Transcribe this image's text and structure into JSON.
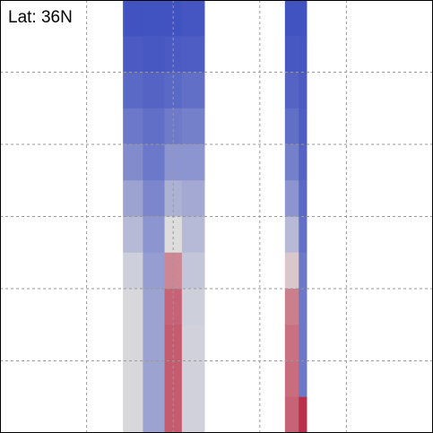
{
  "chart_data": {
    "type": "heatmap",
    "annotation": "Lat: 36N",
    "xlim": [
      0,
      5
    ],
    "xticks": [
      1,
      2,
      3,
      4
    ],
    "ylim": [
      0,
      6
    ],
    "yticks": [
      1,
      2,
      3,
      4,
      5
    ],
    "grid": true,
    "x_edges": [
      1.42,
      1.65,
      1.9,
      2.1,
      2.36,
      3.29,
      3.45,
      3.54
    ],
    "y_edges": [
      6,
      5.5,
      5,
      4.5,
      4,
      3.5,
      3,
      2.5,
      2,
      1.5,
      1,
      0.5,
      0
    ],
    "zlim": [
      0,
      1
    ],
    "colormap": [
      "#3b4cc0",
      "#dddddd",
      "#b40426"
    ],
    "values": [
      [
        0.02,
        0.02,
        0.02,
        0.03,
        null,
        0.02,
        0.02
      ],
      [
        0.05,
        0.04,
        0.05,
        0.06,
        null,
        0.04,
        0.03
      ],
      [
        0.1,
        0.08,
        0.1,
        0.12,
        null,
        0.08,
        0.05
      ],
      [
        0.15,
        0.12,
        0.16,
        0.18,
        null,
        0.12,
        0.06
      ],
      [
        0.22,
        0.15,
        0.25,
        0.25,
        null,
        0.18,
        0.08
      ],
      [
        0.3,
        0.2,
        0.35,
        0.32,
        null,
        0.25,
        0.1
      ],
      [
        0.38,
        0.25,
        0.5,
        0.38,
        null,
        0.38,
        0.12
      ],
      [
        0.45,
        0.28,
        0.7,
        0.42,
        null,
        0.55,
        0.15
      ],
      [
        0.48,
        0.3,
        0.78,
        0.45,
        null,
        0.72,
        0.15
      ],
      [
        0.48,
        0.3,
        0.8,
        0.46,
        null,
        0.75,
        0.15
      ],
      [
        0.48,
        0.3,
        0.8,
        0.46,
        null,
        0.76,
        0.15
      ],
      [
        0.48,
        0.3,
        0.8,
        0.46,
        null,
        0.78,
        0.9
      ]
    ]
  }
}
